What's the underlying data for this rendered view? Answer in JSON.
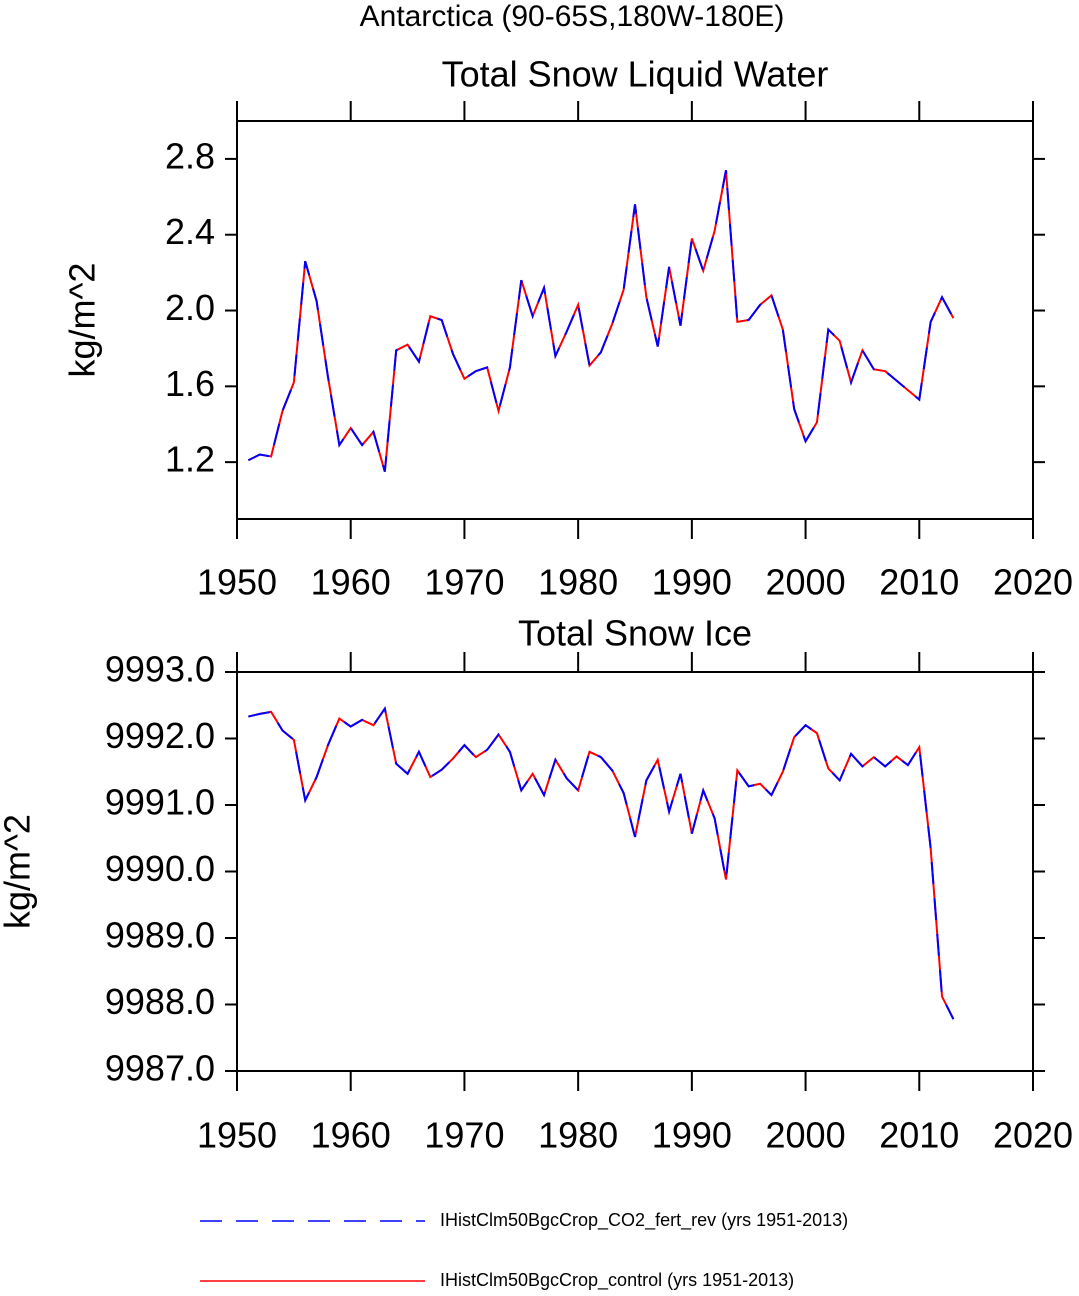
{
  "title": "Antarctica (90-65S,180W-180E)",
  "chart_data": [
    {
      "type": "line",
      "title": "Total Snow Liquid Water",
      "y_label": "kg/m^2",
      "x": [
        1951,
        1952,
        1953,
        1954,
        1955,
        1956,
        1957,
        1958,
        1959,
        1960,
        1961,
        1962,
        1963,
        1964,
        1965,
        1966,
        1967,
        1968,
        1969,
        1970,
        1971,
        1972,
        1973,
        1974,
        1975,
        1976,
        1977,
        1978,
        1979,
        1980,
        1981,
        1982,
        1983,
        1984,
        1985,
        1986,
        1987,
        1988,
        1989,
        1990,
        1991,
        1992,
        1993,
        1994,
        1995,
        1996,
        1997,
        1998,
        1999,
        2000,
        2001,
        2002,
        2003,
        2004,
        2005,
        2006,
        2007,
        2008,
        2009,
        2010,
        2011,
        2012,
        2013
      ],
      "series": [
        {
          "name": "IHistClm50BgcCrop_CO2_fert_rev (yrs 1951-2013)",
          "color": "#0000ff",
          "line_style": "dashed",
          "values": [
            1.21,
            1.24,
            1.23,
            1.47,
            1.62,
            2.26,
            2.05,
            1.65,
            1.29,
            1.38,
            1.29,
            1.36,
            1.15,
            1.79,
            1.82,
            1.73,
            1.97,
            1.95,
            1.77,
            1.64,
            1.68,
            1.7,
            1.47,
            1.7,
            2.16,
            1.97,
            2.12,
            1.76,
            1.89,
            2.03,
            1.71,
            1.78,
            1.93,
            2.11,
            2.56,
            2.07,
            1.81,
            2.23,
            1.92,
            2.38,
            2.21,
            2.42,
            2.74,
            1.94,
            1.95,
            2.03,
            2.08,
            1.9,
            1.48,
            1.31,
            1.41,
            1.9,
            1.84,
            1.62,
            1.79,
            1.69,
            1.68,
            1.63,
            1.58,
            1.53,
            1.94,
            2.07,
            1.96
          ]
        },
        {
          "name": "IHistClm50BgcCrop_control (yrs 1951-2013)",
          "color": "#ff0000",
          "line_style": "solid",
          "values": [
            1.21,
            1.24,
            1.23,
            1.47,
            1.62,
            2.26,
            2.05,
            1.65,
            1.29,
            1.38,
            1.29,
            1.36,
            1.15,
            1.79,
            1.82,
            1.73,
            1.97,
            1.95,
            1.77,
            1.64,
            1.68,
            1.7,
            1.47,
            1.7,
            2.16,
            1.97,
            2.12,
            1.76,
            1.89,
            2.03,
            1.71,
            1.78,
            1.93,
            2.11,
            2.56,
            2.07,
            1.81,
            2.23,
            1.92,
            2.38,
            2.21,
            2.42,
            2.74,
            1.94,
            1.95,
            2.03,
            2.08,
            1.9,
            1.48,
            1.31,
            1.41,
            1.9,
            1.84,
            1.62,
            1.79,
            1.69,
            1.68,
            1.63,
            1.58,
            1.53,
            1.94,
            2.07,
            1.96
          ]
        }
      ],
      "xlim": [
        1950,
        2020
      ],
      "xticks": [
        1950,
        1960,
        1970,
        1980,
        1990,
        2000,
        2010,
        2020
      ],
      "ylim": [
        0.9,
        3.0
      ],
      "yticks": [
        1.2,
        1.6,
        {
          "value": 2,
          "label": "2.0"
        },
        2.4,
        2.8
      ]
    },
    {
      "type": "line",
      "title": "Total Snow Ice",
      "y_label": "kg/m^2",
      "x": [
        1951,
        1952,
        1953,
        1954,
        1955,
        1956,
        1957,
        1958,
        1959,
        1960,
        1961,
        1962,
        1963,
        1964,
        1965,
        1966,
        1967,
        1968,
        1969,
        1970,
        1971,
        1972,
        1973,
        1974,
        1975,
        1976,
        1977,
        1978,
        1979,
        1980,
        1981,
        1982,
        1983,
        1984,
        1985,
        1986,
        1987,
        1988,
        1989,
        1990,
        1991,
        1992,
        1993,
        1994,
        1995,
        1996,
        1997,
        1998,
        1999,
        2000,
        2001,
        2002,
        2003,
        2004,
        2005,
        2006,
        2007,
        2008,
        2009,
        2010,
        2011,
        2012,
        2013
      ],
      "series": [
        {
          "color": "#0000ff",
          "line_style": "dashed",
          "values": [
            9992.33,
            9992.37,
            9992.4,
            9992.12,
            9991.98,
            9991.07,
            9991.42,
            9991.9,
            9992.3,
            9992.18,
            9992.28,
            9992.2,
            9992.45,
            9991.62,
            9991.47,
            9991.8,
            9991.42,
            9991.53,
            9991.7,
            9991.9,
            9991.72,
            9991.83,
            9992.06,
            9991.8,
            9991.22,
            9991.47,
            9991.15,
            9991.68,
            9991.4,
            9991.22,
            9991.8,
            9991.72,
            9991.52,
            9991.18,
            9990.52,
            9991.37,
            9991.68,
            9990.9,
            9991.47,
            9990.57,
            9991.22,
            9990.8,
            9989.88,
            9991.52,
            9991.28,
            9991.32,
            9991.15,
            9991.5,
            9992.02,
            9992.2,
            9992.08,
            9991.55,
            9991.37,
            9991.77,
            9991.58,
            9991.72,
            9991.58,
            9991.73,
            9991.6,
            9991.87,
            9990.35,
            9988.12,
            9987.78
          ]
        },
        {
          "color": "#ff0000",
          "line_style": "solid",
          "values": [
            9992.33,
            9992.37,
            9992.4,
            9992.12,
            9991.98,
            9991.07,
            9991.42,
            9991.9,
            9992.3,
            9992.18,
            9992.28,
            9992.2,
            9992.45,
            9991.62,
            9991.47,
            9991.8,
            9991.42,
            9991.53,
            9991.7,
            9991.9,
            9991.72,
            9991.83,
            9992.06,
            9991.8,
            9991.22,
            9991.47,
            9991.15,
            9991.68,
            9991.4,
            9991.22,
            9991.8,
            9991.72,
            9991.52,
            9991.18,
            9990.52,
            9991.37,
            9991.68,
            9990.9,
            9991.47,
            9990.57,
            9991.22,
            9990.8,
            9989.88,
            9991.52,
            9991.28,
            9991.32,
            9991.15,
            9991.5,
            9992.02,
            9992.2,
            9992.08,
            9991.55,
            9991.37,
            9991.77,
            9991.58,
            9991.72,
            9991.58,
            9991.73,
            9991.6,
            9991.87,
            9990.35,
            9988.12,
            9987.78
          ]
        }
      ],
      "xlim": [
        1950,
        2020
      ],
      "xticks": [
        1950,
        1960,
        1970,
        1980,
        1990,
        2000,
        2010,
        2020
      ],
      "ylim": [
        9987,
        9993
      ],
      "yticks": [
        {
          "value": 9987,
          "label": "9987.0"
        },
        {
          "value": 9988,
          "label": "9988.0"
        },
        {
          "value": 9989,
          "label": "9989.0"
        },
        {
          "value": 9990,
          "label": "9990.0"
        },
        {
          "value": 9991,
          "label": "9991.0"
        },
        {
          "value": 9992,
          "label": "9992.0"
        },
        {
          "value": 9993,
          "label": "9993.0"
        }
      ]
    }
  ]
}
